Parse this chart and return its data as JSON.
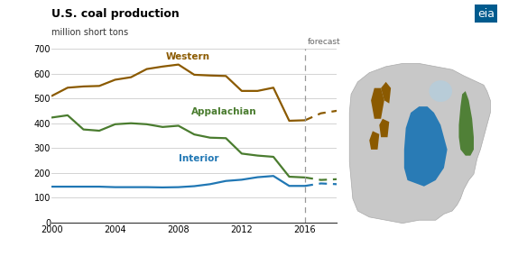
{
  "title": "U.S. coal production",
  "subtitle": "million short tons",
  "forecast_year": 2016,
  "forecast_label": "forecast",
  "ylim": [
    0,
    700
  ],
  "yticks": [
    0,
    100,
    200,
    300,
    400,
    500,
    600,
    700
  ],
  "xlim": [
    2000,
    2018
  ],
  "xticks": [
    2000,
    2004,
    2008,
    2012,
    2016
  ],
  "background_color": "#ffffff",
  "grid_color": "#cccccc",
  "western_color": "#8B5A00",
  "appalachian_color": "#4a7c2f",
  "interior_color": "#2077b4",
  "western_label": "Western",
  "appalachian_label": "Appalachian",
  "interior_label": "Interior",
  "western_x": [
    2000,
    2001,
    2002,
    2003,
    2004,
    2005,
    2006,
    2007,
    2008,
    2009,
    2010,
    2011,
    2012,
    2013,
    2014,
    2015,
    2016,
    2017,
    2018
  ],
  "western_y": [
    510,
    543,
    548,
    550,
    575,
    585,
    618,
    628,
    636,
    595,
    592,
    590,
    530,
    530,
    543,
    410,
    412,
    440,
    450
  ],
  "appalachian_x": [
    2000,
    2001,
    2002,
    2003,
    2004,
    2005,
    2006,
    2007,
    2008,
    2009,
    2010,
    2011,
    2012,
    2013,
    2014,
    2015,
    2016,
    2017,
    2018
  ],
  "appalachian_y": [
    423,
    432,
    375,
    370,
    396,
    400,
    396,
    385,
    390,
    355,
    342,
    340,
    278,
    270,
    265,
    185,
    182,
    172,
    175
  ],
  "interior_x": [
    2000,
    2001,
    2002,
    2003,
    2004,
    2005,
    2006,
    2007,
    2008,
    2009,
    2010,
    2011,
    2012,
    2013,
    2014,
    2015,
    2016,
    2017,
    2018
  ],
  "interior_y": [
    145,
    145,
    145,
    145,
    143,
    143,
    143,
    142,
    143,
    147,
    155,
    168,
    173,
    183,
    188,
    148,
    148,
    158,
    155
  ],
  "eia_logo_color": "#005b8e",
  "map_bg": "#d8d8d8",
  "map_us_color": "#c8c8c8",
  "map_border_color": "#aaaaaa"
}
